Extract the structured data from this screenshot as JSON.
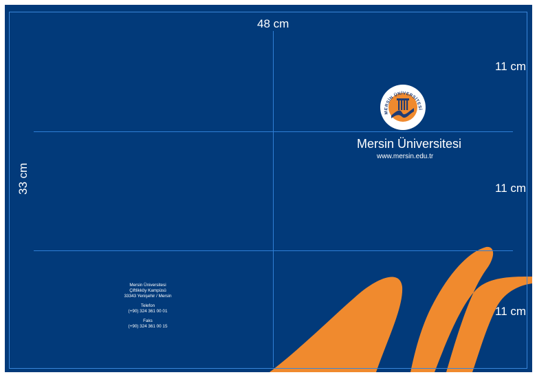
{
  "dimensions": {
    "width_label": "48 cm",
    "height_label": "33 cm",
    "panel_top_label": "11 cm",
    "panel_middle_label": "11 cm",
    "panel_bottom_label": "11 cm"
  },
  "brand": {
    "name": "Mersin Üniversitesi",
    "url": "www.mersin.edu.tr",
    "logo_text_top": "MERSİN ÜNİVERSİTESİ",
    "logo_year": "1992"
  },
  "address": {
    "line1": "Mersin Üniversitesi",
    "line2": "Çiftlikköy Kampüsü",
    "line3": "33343 Yenişehir / Mersin",
    "phone_label": "Telefon",
    "phone": "(+90) 324 361 00 01",
    "fax_label": "Faks",
    "fax": "(+90) 324 361 00 15"
  },
  "colors": {
    "background": "#023a7a",
    "accent": "#f08a2e",
    "guide": "#2f7fd6",
    "text": "#ffffff"
  }
}
